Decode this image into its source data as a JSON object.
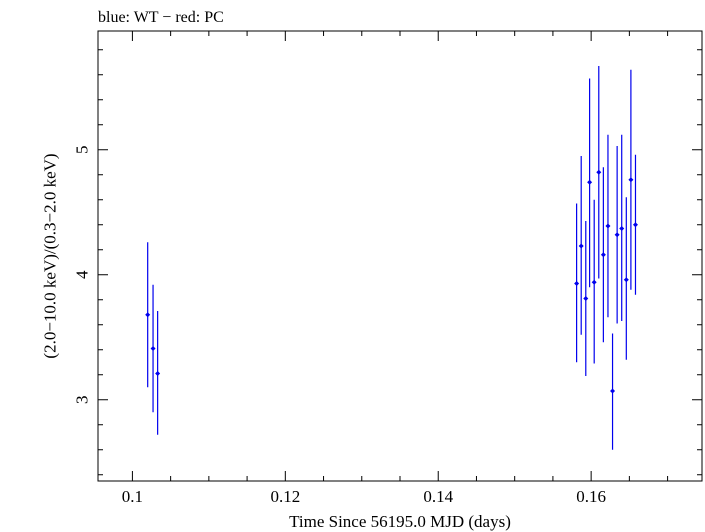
{
  "chart_data": {
    "type": "scatter",
    "title": "blue: WT − red: PC",
    "xlabel": "Time Since 56195.0 MJD (days)",
    "ylabel": "(2.0−10.0 keV)/(0.3−2.0 keV)",
    "xlim": [
      0.0955,
      0.1745
    ],
    "ylim": [
      2.35,
      5.95
    ],
    "xticks": [
      0.1,
      0.12,
      0.14,
      0.16
    ],
    "xtick_labels": [
      "0.1",
      "0.12",
      "0.14",
      "0.16"
    ],
    "yticks": [
      3,
      4,
      5
    ],
    "ytick_labels": [
      "3",
      "4",
      "5"
    ],
    "grid": false,
    "colors": {
      "series": "#0000ee",
      "axes": "#000000"
    },
    "series": [
      {
        "points": [
          {
            "x": 0.102,
            "y": 3.68,
            "ylo": 3.1,
            "yhi": 4.26
          },
          {
            "x": 0.1027,
            "y": 3.41,
            "ylo": 2.9,
            "yhi": 3.92
          },
          {
            "x": 0.1033,
            "y": 3.21,
            "ylo": 2.72,
            "yhi": 3.71
          },
          {
            "x": 0.1581,
            "y": 3.93,
            "ylo": 3.3,
            "yhi": 4.57
          },
          {
            "x": 0.1587,
            "y": 4.23,
            "ylo": 3.52,
            "yhi": 4.95
          },
          {
            "x": 0.1593,
            "y": 3.81,
            "ylo": 3.19,
            "yhi": 4.43
          },
          {
            "x": 0.1598,
            "y": 4.74,
            "ylo": 3.9,
            "yhi": 5.57
          },
          {
            "x": 0.1604,
            "y": 3.94,
            "ylo": 3.29,
            "yhi": 4.6
          },
          {
            "x": 0.161,
            "y": 4.82,
            "ylo": 3.97,
            "yhi": 5.67
          },
          {
            "x": 0.1616,
            "y": 4.16,
            "ylo": 3.46,
            "yhi": 4.86
          },
          {
            "x": 0.1622,
            "y": 4.39,
            "ylo": 3.66,
            "yhi": 5.12
          },
          {
            "x": 0.1628,
            "y": 3.07,
            "ylo": 2.6,
            "yhi": 3.53
          },
          {
            "x": 0.1634,
            "y": 4.32,
            "ylo": 3.61,
            "yhi": 5.03
          },
          {
            "x": 0.164,
            "y": 4.37,
            "ylo": 3.63,
            "yhi": 5.12
          },
          {
            "x": 0.1646,
            "y": 3.96,
            "ylo": 3.32,
            "yhi": 4.62
          },
          {
            "x": 0.1652,
            "y": 4.76,
            "ylo": 3.88,
            "yhi": 5.64
          },
          {
            "x": 0.1658,
            "y": 4.4,
            "ylo": 3.84,
            "yhi": 4.96
          }
        ]
      }
    ]
  }
}
